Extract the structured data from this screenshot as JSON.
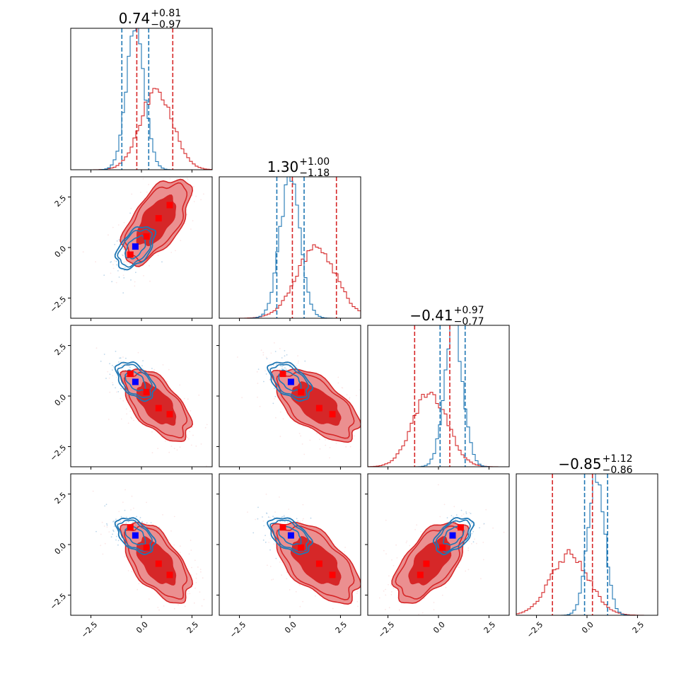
{
  "chart_data": {
    "type": "corner",
    "n_params": 4,
    "axis_range": [
      -3.5,
      3.5
    ],
    "tick_values": [
      -2.5,
      0.0,
      2.5
    ],
    "tick_labels": [
      "−2.5",
      "0.0",
      "2.5"
    ],
    "colors": {
      "red": "#d62728",
      "red_mid": "#eb8f90",
      "red_light": "#fbe6e6",
      "blue": "#1f77b4",
      "blue_light": "#bcd6ea",
      "marker_red": "#ff0000",
      "marker_blue": "#0000ff"
    },
    "titles": [
      {
        "value": "0.74",
        "plus": "+0.81",
        "minus": "−0.97"
      },
      {
        "value": "1.30",
        "plus": "+1.00",
        "minus": "−1.18"
      },
      {
        "value": "−0.41",
        "plus": "+0.97",
        "minus": "−0.77"
      },
      {
        "value": "−0.85",
        "plus": "+1.12",
        "minus": "−0.86"
      }
    ],
    "series": [
      {
        "name": "red",
        "means": [
          0.74,
          1.3,
          -0.41,
          -0.85
        ],
        "quantiles": [
          [
            -0.23,
            1.55
          ],
          [
            0.12,
            2.3
          ],
          [
            -1.18,
            0.56
          ],
          [
            -1.71,
            0.27
          ]
        ],
        "widths": [
          0.8,
          1.0,
          0.85,
          0.95
        ],
        "corr": [
          [
            1,
            0.6,
            -0.6,
            -0.6
          ],
          [
            0.6,
            1,
            -0.6,
            -0.6
          ],
          [
            -0.6,
            -0.6,
            1,
            0.6
          ],
          [
            -0.6,
            -0.6,
            0.6,
            1
          ]
        ],
        "markers": [
          [
            -0.55,
            -0.35,
            1.1,
            0.85
          ],
          [
            0.25,
            0.55,
            0.2,
            -0.15
          ],
          [
            0.85,
            1.45,
            -0.6,
            -0.95
          ],
          [
            1.4,
            2.1,
            -0.9,
            -1.5
          ]
        ]
      },
      {
        "name": "blue",
        "means": [
          -0.3,
          0.0,
          0.75,
          0.45
        ],
        "quantiles": [
          [
            -0.97,
            0.36
          ],
          [
            -0.65,
            0.7
          ],
          [
            0.08,
            1.32
          ],
          [
            -0.12,
            1.02
          ]
        ],
        "widths": [
          0.45,
          0.5,
          0.45,
          0.42
        ],
        "corr": [
          [
            1,
            0.5,
            -0.5,
            -0.5
          ],
          [
            0.5,
            1,
            -0.5,
            -0.5
          ],
          [
            -0.5,
            -0.5,
            1,
            0.5
          ],
          [
            -0.5,
            -0.5,
            0.5,
            1
          ]
        ],
        "markers": [
          [
            -0.3,
            0.05,
            0.7,
            0.45
          ]
        ]
      }
    ]
  }
}
